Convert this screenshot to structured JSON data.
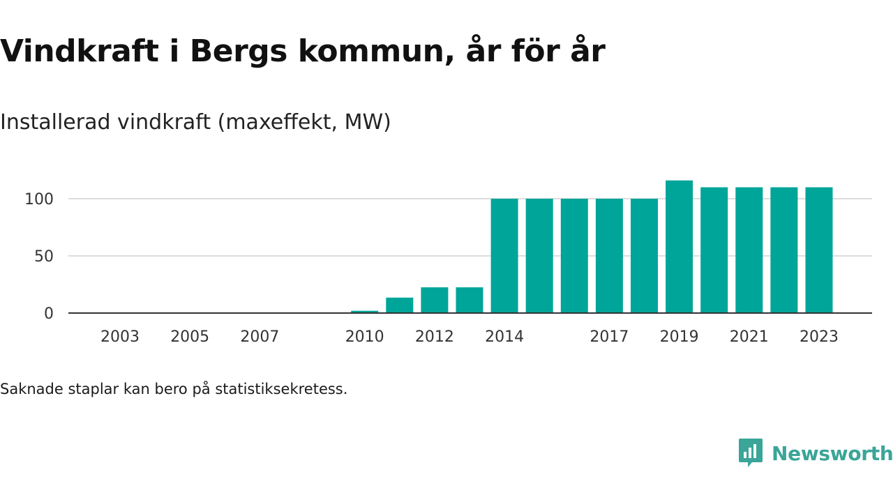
{
  "title": "Vindkraft i Bergs kommun, år för år",
  "subtitle": "Installerad vindkraft (maxeffekt, MW)",
  "note": "Saknade staplar kan bero på statistiksekretess.",
  "brand": {
    "name": "Newsworthy",
    "color": "#3aa598",
    "icon": "chart-bubble-icon"
  },
  "colors": {
    "bar": "#00a599",
    "grid": "#dddddd",
    "axis": "#333333"
  },
  "chart_data": {
    "type": "bar",
    "title": "Vindkraft i Bergs kommun, år för år",
    "subtitle": "Installerad vindkraft (maxeffekt, MW)",
    "categories": [
      2003,
      2004,
      2005,
      2006,
      2007,
      2008,
      2009,
      2010,
      2011,
      2012,
      2013,
      2014,
      2015,
      2016,
      2017,
      2018,
      2019,
      2020,
      2021,
      2022,
      2023
    ],
    "values": [
      null,
      null,
      null,
      null,
      null,
      null,
      null,
      2,
      13.5,
      22.5,
      22.5,
      100,
      100,
      100,
      100,
      100,
      116,
      110,
      110,
      110,
      110
    ],
    "xticks": [
      2003,
      2005,
      2007,
      2010,
      2012,
      2014,
      2017,
      2019,
      2021,
      2023
    ],
    "yticks": [
      0,
      50,
      100
    ],
    "ylim": [
      0,
      125
    ],
    "xlabel": "",
    "ylabel": "",
    "grid": "horizontal",
    "legend": "none"
  }
}
